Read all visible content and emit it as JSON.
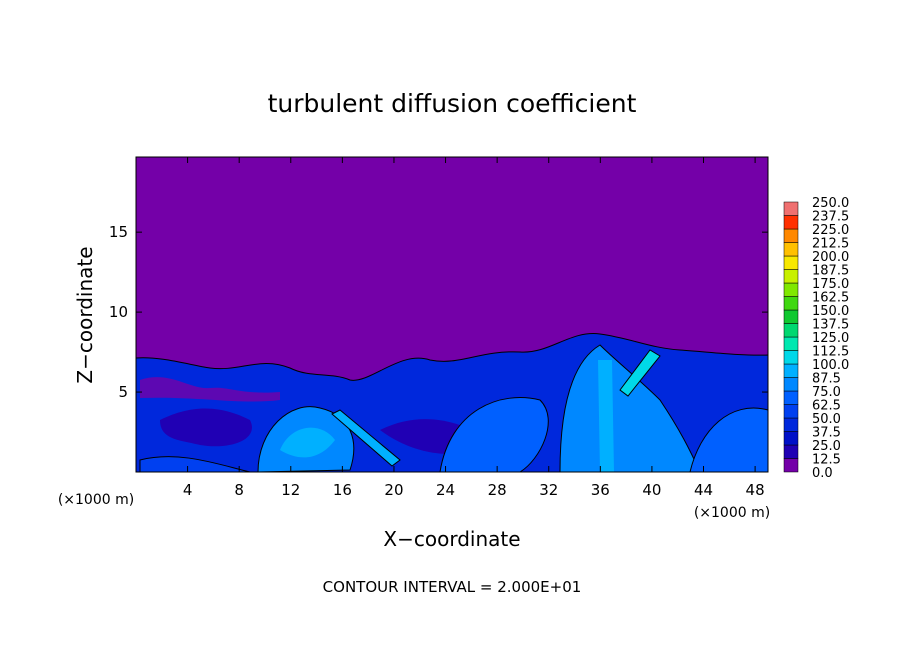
{
  "chart_data": {
    "type": "contour",
    "title": "turbulent diffusion coefficient",
    "x_label": "X−coordinate",
    "y_label": "Z−coordinate",
    "x_unit": "(×1000 m)",
    "y_unit": "(×1000 m)",
    "annotation": "CONTOUR INTERVAL = 2.000E+01",
    "xlim": [
      0,
      49
    ],
    "ylim": [
      0,
      19.7
    ],
    "xticks": [
      4,
      8,
      12,
      16,
      20,
      24,
      28,
      32,
      36,
      40,
      44,
      48
    ],
    "yticks": [
      5,
      10,
      15
    ],
    "colorbar": {
      "levels": [
        {
          "value": 0,
          "label": "0.0"
        },
        12.5,
        {
          "value": 25,
          "label": "25.0"
        },
        37.5,
        {
          "value": 50,
          "label": "50.0"
        },
        62.5,
        {
          "value": 75,
          "label": "75.0"
        },
        87.5,
        {
          "value": 100,
          "label": "100.0"
        },
        112.5,
        {
          "value": 125,
          "label": "125.0"
        },
        137.5,
        {
          "value": 150,
          "label": "150.0"
        },
        162.5,
        {
          "value": 175,
          "label": "175.0"
        },
        187.5,
        {
          "value": 200,
          "label": "200.0"
        },
        212.5,
        {
          "value": 225,
          "label": "225.0"
        },
        237.5,
        {
          "value": 250,
          "label": "250.0"
        }
      ],
      "colors": [
        "#7400a8",
        "#2000b4",
        "#0010c8",
        "#0028dc",
        "#0040f0",
        "#0060ff",
        "#0088ff",
        "#00b0ff",
        "#00d8e8",
        "#00e8b0",
        "#00d870",
        "#10c830",
        "#40d810",
        "#80e800",
        "#c8f000",
        "#f8e800",
        "#ffc000",
        "#ff8800",
        "#ff3000",
        "#f07070"
      ]
    }
  }
}
